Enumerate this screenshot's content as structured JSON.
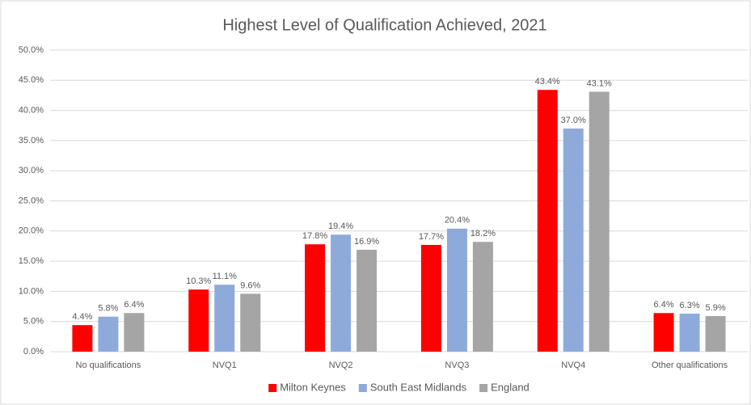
{
  "chart_data": {
    "type": "bar",
    "title": "Highest Level of Qualification Achieved, 2021",
    "categories": [
      "No qualifications",
      "NVQ1",
      "NVQ2",
      "NVQ3",
      "NVQ4",
      "Other qualifications"
    ],
    "series": [
      {
        "name": "Milton Keynes",
        "color": "#ff0000",
        "values": [
          4.4,
          10.3,
          17.8,
          17.7,
          43.4,
          6.4
        ],
        "value_labels": [
          "4.4%",
          "10.3%",
          "17.8%",
          "17.7%",
          "43.4%",
          "6.4%"
        ]
      },
      {
        "name": "South East Midlands",
        "color": "#8eaadb",
        "values": [
          5.8,
          11.1,
          19.4,
          20.4,
          37.0,
          6.3
        ],
        "value_labels": [
          "5.8%",
          "11.1%",
          "19.4%",
          "20.4%",
          "37.0%",
          "6.3%"
        ]
      },
      {
        "name": "England",
        "color": "#a5a5a5",
        "values": [
          6.4,
          9.6,
          16.9,
          18.2,
          43.1,
          5.9
        ],
        "value_labels": [
          "6.4%",
          "9.6%",
          "16.9%",
          "18.2%",
          "43.1%",
          "5.9%"
        ]
      }
    ],
    "ylim": [
      0,
      50
    ],
    "yticks": [
      {
        "value": 0,
        "label": "0.0%"
      },
      {
        "value": 5,
        "label": "5.0%"
      },
      {
        "value": 10,
        "label": "10.0%"
      },
      {
        "value": 15,
        "label": "15.0%"
      },
      {
        "value": 20,
        "label": "20.0%"
      },
      {
        "value": 25,
        "label": "25.0%"
      },
      {
        "value": 30,
        "label": "30.0%"
      },
      {
        "value": 35,
        "label": "35.0%"
      },
      {
        "value": 40,
        "label": "40.0%"
      },
      {
        "value": 45,
        "label": "45.0%"
      },
      {
        "value": 50,
        "label": "50.0%"
      }
    ],
    "grid": true,
    "legend": "bottom"
  }
}
